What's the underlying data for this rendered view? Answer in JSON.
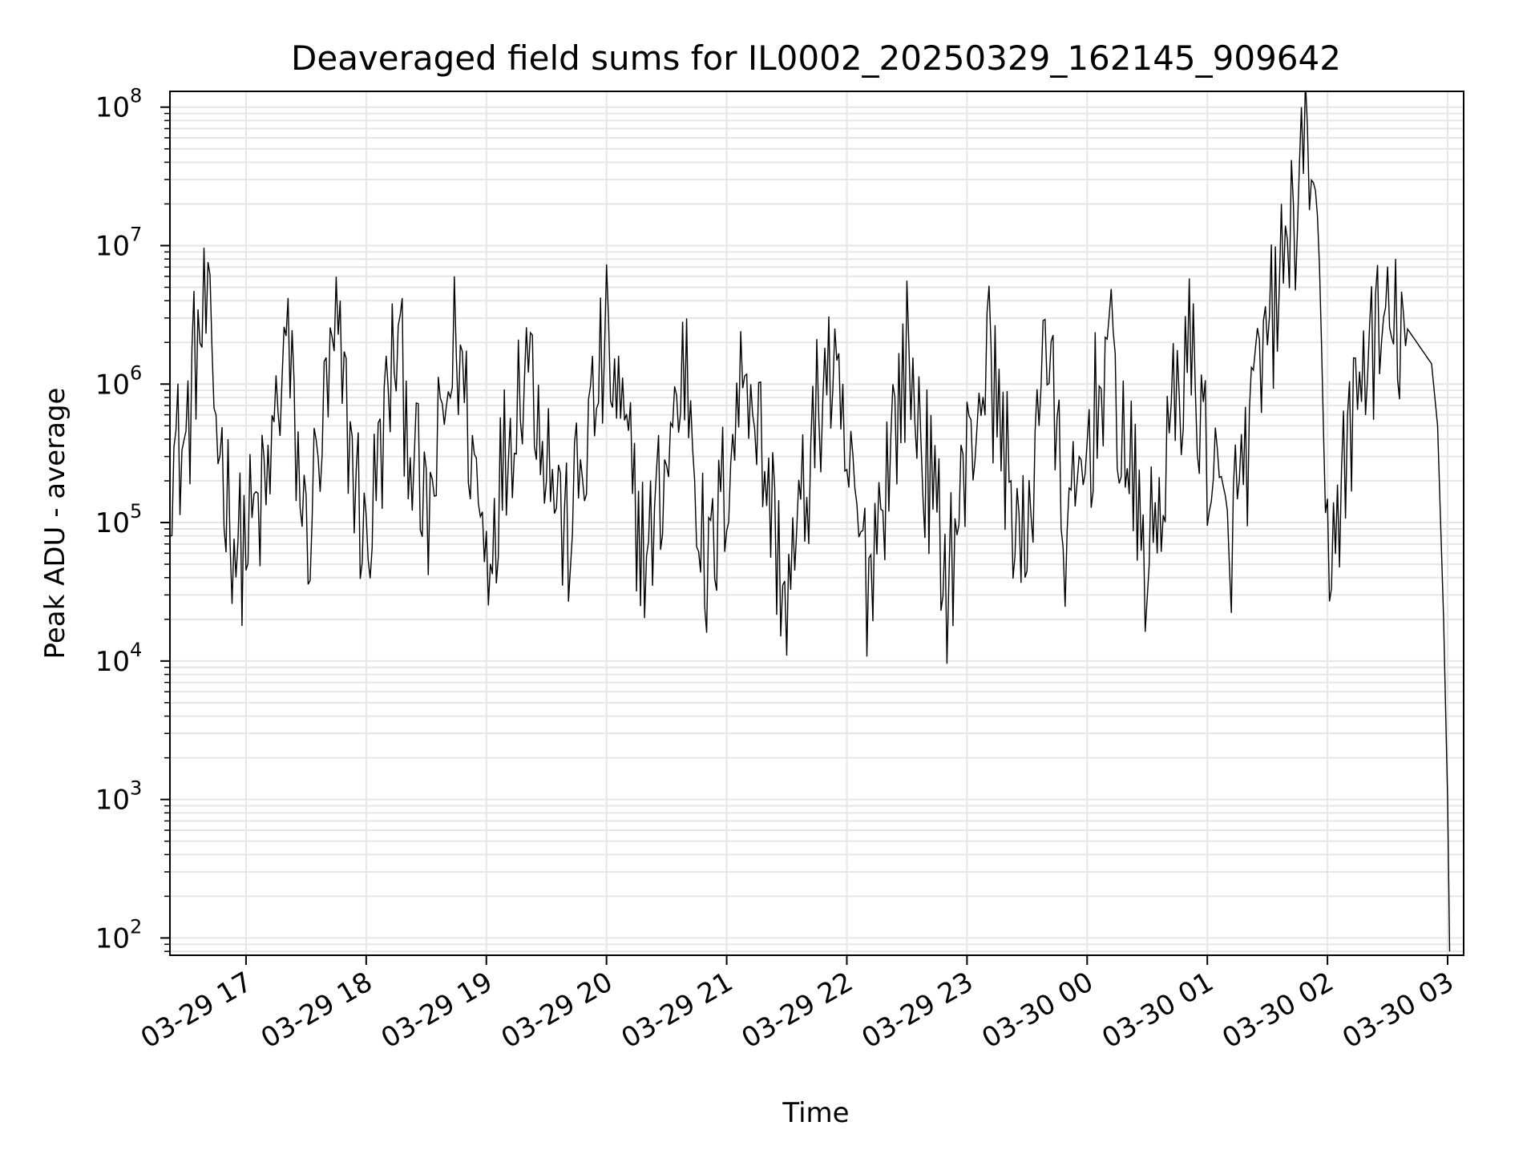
{
  "chart_data": {
    "type": "line",
    "title": "Deaveraged field sums for IL0002_20250329_162145_909642",
    "xlabel": "Time",
    "ylabel": "Peak ADU - average",
    "yscale": "log",
    "ylim": [
      75,
      130000000
    ],
    "xlim": [
      "2025-03-29 16:22",
      "2025-03-30 03:08"
    ],
    "grid": true,
    "line_color": "#000000",
    "grid_color": "#e6e6e6",
    "x_ticks": [
      {
        "value": "2025-03-29 17:00",
        "label": "03-29 17"
      },
      {
        "value": "2025-03-29 18:00",
        "label": "03-29 18"
      },
      {
        "value": "2025-03-29 19:00",
        "label": "03-29 19"
      },
      {
        "value": "2025-03-29 20:00",
        "label": "03-29 20"
      },
      {
        "value": "2025-03-29 21:00",
        "label": "03-29 21"
      },
      {
        "value": "2025-03-29 22:00",
        "label": "03-29 22"
      },
      {
        "value": "2025-03-29 23:00",
        "label": "03-29 23"
      },
      {
        "value": "2025-03-30 00:00",
        "label": "03-30 00"
      },
      {
        "value": "2025-03-30 01:00",
        "label": "03-30 01"
      },
      {
        "value": "2025-03-30 02:00",
        "label": "03-30 02"
      },
      {
        "value": "2025-03-30 03:00",
        "label": "03-30 03"
      }
    ],
    "y_ticks": [
      {
        "value": 100,
        "base": "10",
        "exp": "2"
      },
      {
        "value": 1000,
        "base": "10",
        "exp": "3"
      },
      {
        "value": 10000,
        "base": "10",
        "exp": "4"
      },
      {
        "value": 100000,
        "base": "10",
        "exp": "5"
      },
      {
        "value": 1000000,
        "base": "10",
        "exp": "6"
      },
      {
        "value": 10000000,
        "base": "10",
        "exp": "7"
      },
      {
        "value": 100000000,
        "base": "10",
        "exp": "8"
      }
    ],
    "series": [
      {
        "points": [
          [
            "2025-03-29 16:22",
            300000
          ],
          [
            "2025-03-29 16:30",
            350000
          ],
          [
            "2025-03-29 16:35",
            1800000
          ],
          [
            "2025-03-29 16:40",
            3000000
          ],
          [
            "2025-03-29 16:45",
            600000
          ],
          [
            "2025-03-29 16:52",
            120000
          ],
          [
            "2025-03-29 16:56",
            60000
          ],
          [
            "2025-03-29 17:10",
            150000
          ],
          [
            "2025-03-29 17:20",
            2100000
          ],
          [
            "2025-03-29 17:30",
            70000
          ],
          [
            "2025-03-29 17:45",
            2000000
          ],
          [
            "2025-03-29 18:00",
            60000
          ],
          [
            "2025-03-29 18:15",
            2000000
          ],
          [
            "2025-03-29 18:30",
            80000
          ],
          [
            "2025-03-29 18:45",
            2200000
          ],
          [
            "2025-03-29 19:00",
            60000
          ],
          [
            "2025-03-29 19:20",
            2000000
          ],
          [
            "2025-03-29 19:40",
            70000
          ],
          [
            "2025-03-29 20:00",
            1900000
          ],
          [
            "2025-03-29 20:20",
            50000
          ],
          [
            "2025-03-29 20:40",
            1600000
          ],
          [
            "2025-03-29 20:50",
            30000
          ],
          [
            "2025-03-29 21:10",
            1700000
          ],
          [
            "2025-03-29 21:30",
            25000
          ],
          [
            "2025-03-29 21:50",
            1500000
          ],
          [
            "2025-03-29 22:10",
            40000
          ],
          [
            "2025-03-29 22:30",
            1600000
          ],
          [
            "2025-03-29 22:50",
            38000
          ],
          [
            "2025-03-29 23:10",
            1800000
          ],
          [
            "2025-03-29 23:30",
            38000
          ],
          [
            "2025-03-29 23:38",
            3500000
          ],
          [
            "2025-03-29 23:50",
            60000
          ],
          [
            "2025-03-30 00:10",
            1800000
          ],
          [
            "2025-03-30 00:30",
            45000
          ],
          [
            "2025-03-30 00:50",
            2000000
          ],
          [
            "2025-03-30 01:10",
            60000
          ],
          [
            "2025-03-30 01:30",
            2000000
          ],
          [
            "2025-03-30 01:52",
            65000000
          ],
          [
            "2025-03-30 02:00",
            55000
          ],
          [
            "2025-03-30 02:20",
            2000000
          ],
          [
            "2025-03-30 02:40",
            2500000
          ],
          [
            "2025-03-30 02:52",
            1400000
          ],
          [
            "2025-03-30 02:55",
            500000
          ],
          [
            "2025-03-30 02:58",
            20000
          ],
          [
            "2025-03-30 03:00",
            1000
          ],
          [
            "2025-03-30 03:01",
            80
          ]
        ]
      }
    ]
  }
}
